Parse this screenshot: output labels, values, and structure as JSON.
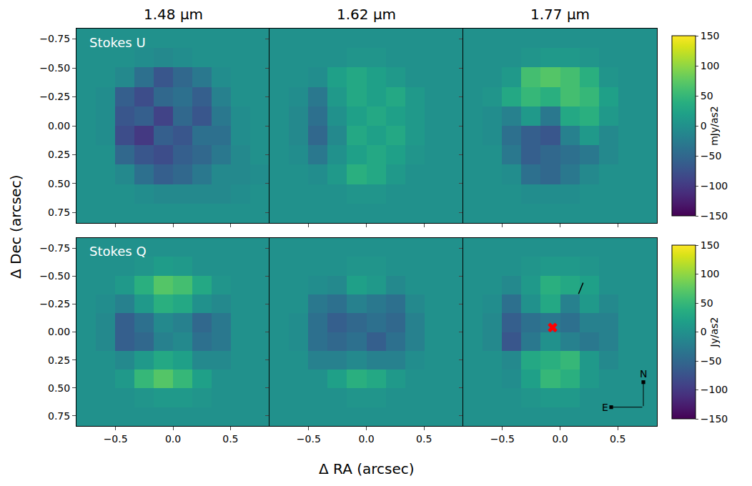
{
  "chart_data": {
    "type": "heatmap",
    "x_label": "Δ RA (arcsec)",
    "y_label": "Δ Dec (arcsec)",
    "columns": [
      "1.48 μm",
      "1.62 μm",
      "1.77 μm"
    ],
    "x": [
      -0.756,
      -0.588,
      -0.42,
      -0.252,
      -0.084,
      0.084,
      0.252,
      0.42,
      0.588,
      0.756
    ],
    "y": [
      -0.756,
      -0.588,
      -0.42,
      -0.252,
      -0.084,
      0.084,
      0.252,
      0.42,
      0.588,
      0.756
    ],
    "xlim": [
      -0.84,
      0.84
    ],
    "ylim": [
      0.84,
      -0.84
    ],
    "xticks": [
      {
        "value": -0.5,
        "label": "−0.5"
      },
      {
        "value": 0,
        "label": "0.0"
      },
      {
        "value": 0.5,
        "label": "0.5"
      }
    ],
    "yticks": [
      {
        "value": -0.75,
        "label": "−0.75"
      },
      {
        "value": -0.5,
        "label": "−0.50"
      },
      {
        "value": -0.25,
        "label": "−0.25"
      },
      {
        "value": 0,
        "label": "0.00"
      },
      {
        "value": 0.25,
        "label": "0.25"
      },
      {
        "value": 0.5,
        "label": "0.50"
      },
      {
        "value": 0.75,
        "label": "0.75"
      }
    ],
    "colorbar_range": [
      -150,
      150
    ],
    "colorbar_ticks": [
      {
        "value": -150,
        "label": "−150"
      },
      {
        "value": -100,
        "label": "−100"
      },
      {
        "value": -50,
        "label": "−50"
      },
      0,
      50,
      100,
      150
    ],
    "rows": [
      {
        "label": "Stokes U",
        "colorbar_title": "mJy/as2",
        "panels": [
          {
            "values": [
              [
                0,
                0,
                0,
                0,
                0,
                0,
                0,
                0,
                0,
                0
              ],
              [
                0,
                0,
                0,
                -5,
                -10,
                -5,
                0,
                0,
                0,
                0
              ],
              [
                0,
                0,
                -10,
                -40,
                -70,
                -50,
                -30,
                -5,
                0,
                0
              ],
              [
                0,
                -5,
                -60,
                -80,
                -50,
                -40,
                -60,
                -20,
                0,
                0
              ],
              [
                0,
                -5,
                -70,
                -60,
                -90,
                -50,
                -70,
                -30,
                -5,
                0
              ],
              [
                0,
                -5,
                -80,
                -100,
                -60,
                -70,
                -40,
                -40,
                -5,
                0
              ],
              [
                0,
                0,
                -50,
                -70,
                -80,
                -60,
                -50,
                -30,
                -10,
                0
              ],
              [
                0,
                0,
                -10,
                -40,
                -60,
                -50,
                -30,
                -10,
                -10,
                -5
              ],
              [
                0,
                0,
                0,
                -5,
                -10,
                -10,
                -10,
                -10,
                -5,
                0
              ],
              [
                0,
                0,
                0,
                0,
                0,
                0,
                0,
                0,
                0,
                0
              ]
            ]
          },
          {
            "values": [
              [
                0,
                0,
                0,
                0,
                0,
                0,
                0,
                0,
                0,
                0
              ],
              [
                0,
                0,
                0,
                0,
                5,
                5,
                0,
                0,
                0,
                0
              ],
              [
                0,
                0,
                -5,
                20,
                30,
                20,
                10,
                0,
                0,
                0
              ],
              [
                0,
                -5,
                -30,
                10,
                30,
                20,
                30,
                10,
                0,
                0
              ],
              [
                0,
                -10,
                -40,
                0,
                20,
                30,
                20,
                10,
                0,
                0
              ],
              [
                0,
                -10,
                -50,
                -10,
                30,
                20,
                30,
                10,
                0,
                0
              ],
              [
                0,
                -5,
                -30,
                0,
                20,
                30,
                20,
                5,
                0,
                0
              ],
              [
                0,
                0,
                -5,
                10,
                40,
                30,
                10,
                0,
                0,
                0
              ],
              [
                0,
                0,
                0,
                0,
                5,
                5,
                0,
                0,
                0,
                0
              ],
              [
                0,
                0,
                0,
                0,
                0,
                0,
                0,
                0,
                0,
                0
              ]
            ]
          },
          {
            "values": [
              [
                0,
                0,
                0,
                0,
                0,
                0,
                0,
                0,
                0,
                0
              ],
              [
                0,
                0,
                0,
                5,
                10,
                10,
                5,
                0,
                0,
                0
              ],
              [
                0,
                0,
                10,
                60,
                70,
                60,
                40,
                5,
                0,
                0
              ],
              [
                0,
                5,
                30,
                50,
                40,
                60,
                50,
                20,
                0,
                0
              ],
              [
                0,
                -5,
                -20,
                10,
                -30,
                30,
                40,
                10,
                0,
                0
              ],
              [
                0,
                -5,
                -40,
                -60,
                -70,
                -20,
                10,
                -10,
                0,
                0
              ],
              [
                0,
                0,
                -30,
                -60,
                -50,
                -40,
                -30,
                -10,
                0,
                0
              ],
              [
                0,
                0,
                -5,
                -40,
                -50,
                -30,
                -10,
                0,
                0,
                0
              ],
              [
                0,
                0,
                0,
                -5,
                -5,
                -5,
                0,
                0,
                0,
                0
              ],
              [
                0,
                0,
                0,
                0,
                0,
                0,
                0,
                0,
                0,
                0
              ]
            ]
          }
        ]
      },
      {
        "label": "Stokes Q",
        "colorbar_title": "Jy/as2",
        "panels": [
          {
            "values": [
              [
                0,
                0,
                0,
                0,
                0,
                0,
                0,
                0,
                0,
                0
              ],
              [
                0,
                0,
                0,
                5,
                15,
                10,
                0,
                0,
                0,
                0
              ],
              [
                0,
                0,
                10,
                40,
                70,
                60,
                30,
                5,
                0,
                0
              ],
              [
                0,
                -5,
                -20,
                10,
                40,
                30,
                0,
                -10,
                0,
                0
              ],
              [
                0,
                -10,
                -60,
                -40,
                -10,
                -20,
                -50,
                -30,
                0,
                0
              ],
              [
                0,
                -10,
                -60,
                -50,
                -20,
                -10,
                -40,
                -30,
                0,
                0
              ],
              [
                0,
                0,
                -10,
                10,
                30,
                20,
                -10,
                -10,
                0,
                0
              ],
              [
                0,
                0,
                10,
                50,
                70,
                50,
                20,
                0,
                0,
                0
              ],
              [
                0,
                0,
                0,
                5,
                10,
                10,
                5,
                0,
                0,
                0
              ],
              [
                0,
                0,
                0,
                0,
                0,
                0,
                0,
                0,
                0,
                0
              ]
            ]
          },
          {
            "values": [
              [
                0,
                0,
                0,
                0,
                0,
                0,
                0,
                0,
                0,
                0
              ],
              [
                0,
                0,
                0,
                0,
                5,
                5,
                0,
                0,
                0,
                0
              ],
              [
                0,
                0,
                -5,
                -10,
                20,
                10,
                -10,
                0,
                0,
                0
              ],
              [
                0,
                0,
                -30,
                -40,
                -20,
                -30,
                -40,
                -10,
                0,
                0
              ],
              [
                0,
                -5,
                -40,
                -60,
                -50,
                -40,
                -50,
                -20,
                0,
                0
              ],
              [
                0,
                -5,
                -40,
                -50,
                -40,
                -60,
                -40,
                -20,
                0,
                0
              ],
              [
                0,
                0,
                -20,
                -20,
                -10,
                -20,
                -20,
                -5,
                0,
                0
              ],
              [
                0,
                0,
                0,
                20,
                40,
                30,
                10,
                0,
                0,
                0
              ],
              [
                0,
                0,
                0,
                0,
                5,
                5,
                0,
                0,
                0,
                0
              ],
              [
                0,
                0,
                0,
                0,
                0,
                0,
                0,
                0,
                0,
                0
              ]
            ]
          },
          {
            "values": [
              [
                0,
                0,
                0,
                0,
                0,
                0,
                0,
                0,
                0,
                0
              ],
              [
                0,
                0,
                0,
                5,
                10,
                10,
                5,
                0,
                0,
                0
              ],
              [
                0,
                0,
                -10,
                10,
                40,
                30,
                20,
                0,
                0,
                0
              ],
              [
                0,
                -5,
                -40,
                0,
                30,
                -20,
                10,
                -10,
                0,
                0
              ],
              [
                0,
                -10,
                -60,
                -40,
                -30,
                -40,
                -20,
                -20,
                0,
                0
              ],
              [
                0,
                -10,
                -70,
                -30,
                0,
                -20,
                -30,
                -20,
                0,
                0
              ],
              [
                0,
                0,
                -10,
                30,
                40,
                50,
                10,
                -10,
                0,
                0
              ],
              [
                0,
                0,
                -5,
                20,
                50,
                40,
                10,
                0,
                0,
                0
              ],
              [
                0,
                0,
                0,
                5,
                10,
                10,
                0,
                0,
                0,
                0
              ],
              [
                0,
                0,
                0,
                0,
                0,
                0,
                0,
                0,
                0,
                0
              ]
            ],
            "point": {
              "x": -0.065,
              "y": -0.04,
              "color": "red",
              "marker": "x"
            },
            "segment": {
              "x": [
                0.2,
                0.16
              ],
              "y": [
                -0.44,
                -0.34
              ],
              "color": "black"
            },
            "compass": {
              "north": "N",
              "east": "E"
            }
          }
        ]
      }
    ]
  }
}
